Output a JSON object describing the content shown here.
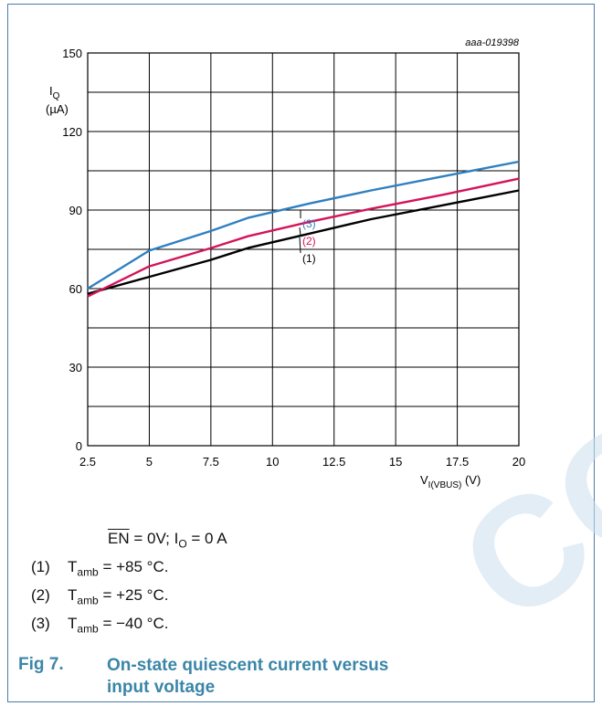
{
  "watermark": "CO",
  "figure_id": "aaa-019398",
  "chart_data": {
    "type": "line",
    "x_ticks": [
      "2.5",
      "5",
      "7.5",
      "10",
      "12.5",
      "15",
      "17.5",
      "20"
    ],
    "y_ticks": [
      "0",
      "30",
      "60",
      "90",
      "120",
      "150"
    ],
    "xlim": [
      2.5,
      20
    ],
    "ylim": [
      0,
      150
    ],
    "x_minor_step": 2.5,
    "y_minor_step": 15,
    "ylabel_main": "I",
    "ylabel_sub": "Q",
    "ylabel_unit": "(µA)",
    "xlabel_main": "V",
    "xlabel_sub": "I(VBUS)",
    "xlabel_unit": " (V)",
    "grid": true,
    "series": [
      {
        "name": "(1)",
        "color": "#000000",
        "x": [
          2.5,
          5,
          7.5,
          9,
          11.5,
          14,
          17,
          20
        ],
        "y": [
          58,
          64.5,
          71,
          75.5,
          81,
          86.5,
          92,
          97.5
        ]
      },
      {
        "name": "(2)",
        "color": "#d4145a",
        "x": [
          2.5,
          5,
          7.5,
          9,
          11.5,
          14,
          17,
          20
        ],
        "y": [
          57,
          68.5,
          75.5,
          80,
          85.5,
          90.5,
          96,
          102
        ]
      },
      {
        "name": "(3)",
        "color": "#2f7fc1",
        "x": [
          2.5,
          5,
          7.5,
          9,
          11.5,
          14,
          17,
          20
        ],
        "y": [
          60,
          74.5,
          82,
          87,
          92.5,
          97.5,
          103,
          108.5
        ]
      }
    ]
  },
  "conditions": {
    "en_label": "EN",
    "en_value": " = 0V; I",
    "io_sub": "O",
    "io_value": " = 0 A"
  },
  "legend": [
    {
      "num": "(1)",
      "t": "T",
      "sub": "amb",
      "value": " = +85 °C."
    },
    {
      "num": "(2)",
      "t": "T",
      "sub": "amb",
      "value": " = +25 °C."
    },
    {
      "num": "(3)",
      "t": "T",
      "sub": "amb",
      "value": " = −40 °C."
    }
  ],
  "caption": {
    "label": "Fig 7.",
    "title": "On-state quiescent current versus input voltage"
  }
}
